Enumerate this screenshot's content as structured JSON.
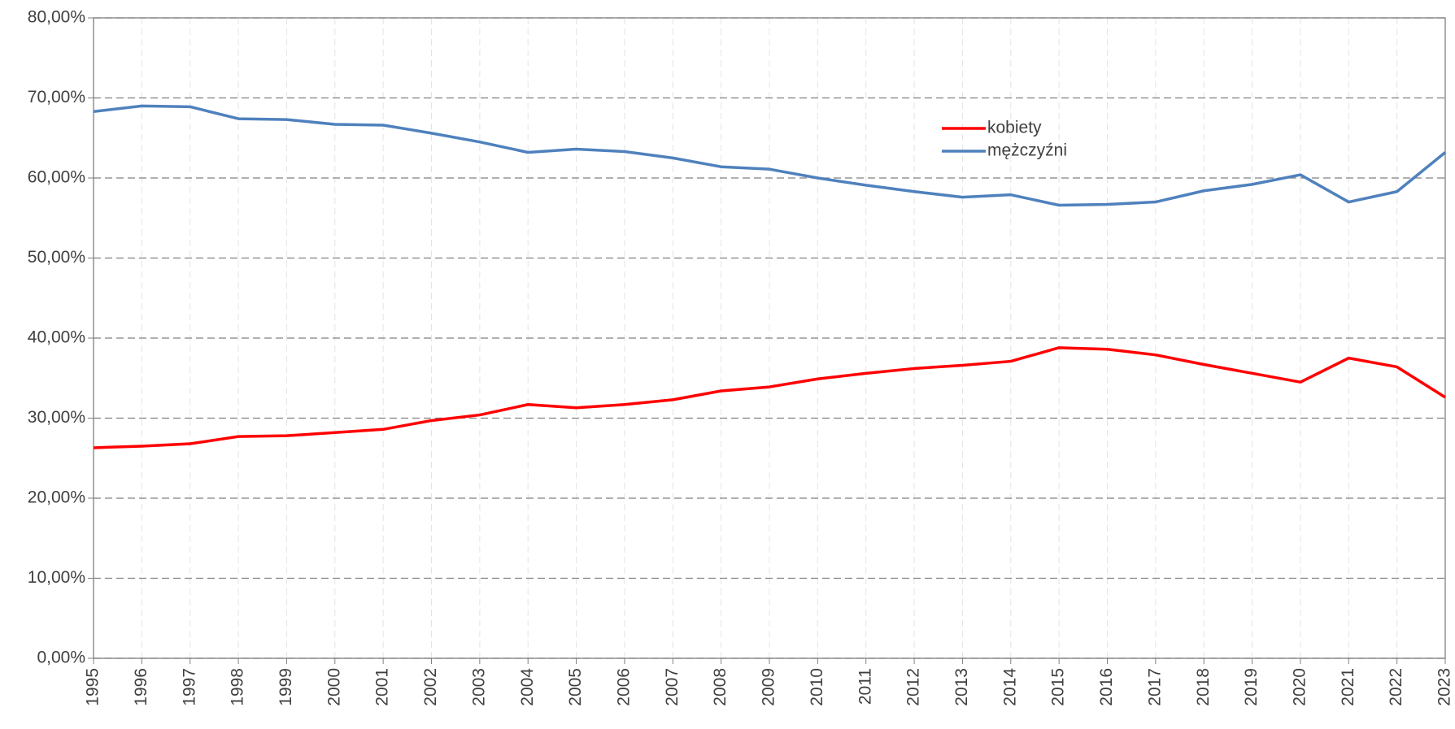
{
  "chart_data": {
    "type": "line",
    "x": [
      1995,
      1996,
      1997,
      1998,
      1999,
      2000,
      2001,
      2002,
      2003,
      2004,
      2005,
      2006,
      2007,
      2008,
      2009,
      2010,
      2011,
      2012,
      2013,
      2014,
      2015,
      2016,
      2017,
      2018,
      2019,
      2020,
      2021,
      2022,
      2023
    ],
    "xlim": [
      1995,
      2023
    ],
    "series": [
      {
        "name": "kobiety",
        "color": "#ff0000",
        "values": [
          26.3,
          26.5,
          26.8,
          27.7,
          27.8,
          28.2,
          28.6,
          29.7,
          30.4,
          31.7,
          31.3,
          31.7,
          32.3,
          33.4,
          33.9,
          34.9,
          35.6,
          36.2,
          36.6,
          37.1,
          38.8,
          38.6,
          37.9,
          36.7,
          35.6,
          34.5,
          37.5,
          36.4,
          32.6
        ]
      },
      {
        "name": "mężczyźni",
        "color": "#4f81bd",
        "values": [
          68.3,
          69.0,
          68.9,
          67.4,
          67.3,
          66.7,
          66.6,
          65.6,
          64.5,
          63.2,
          63.6,
          63.3,
          62.5,
          61.4,
          61.1,
          60.0,
          59.1,
          58.3,
          57.6,
          57.9,
          56.6,
          56.7,
          57.0,
          58.4,
          59.2,
          60.4,
          57.0,
          58.3,
          63.2
        ]
      }
    ],
    "ylim": [
      0,
      80
    ],
    "yticks": [
      {
        "value": 0,
        "label": "0,00%"
      },
      {
        "value": 10,
        "label": "10,00%"
      },
      {
        "value": 20,
        "label": "20,00%"
      },
      {
        "value": 30,
        "label": "30,00%"
      },
      {
        "value": 40,
        "label": "40,00%"
      },
      {
        "value": 50,
        "label": "50,00%"
      },
      {
        "value": 60,
        "label": "60,00%"
      },
      {
        "value": 70,
        "label": "70,00%"
      },
      {
        "value": 80,
        "label": "80,00%"
      }
    ],
    "grid": true
  }
}
